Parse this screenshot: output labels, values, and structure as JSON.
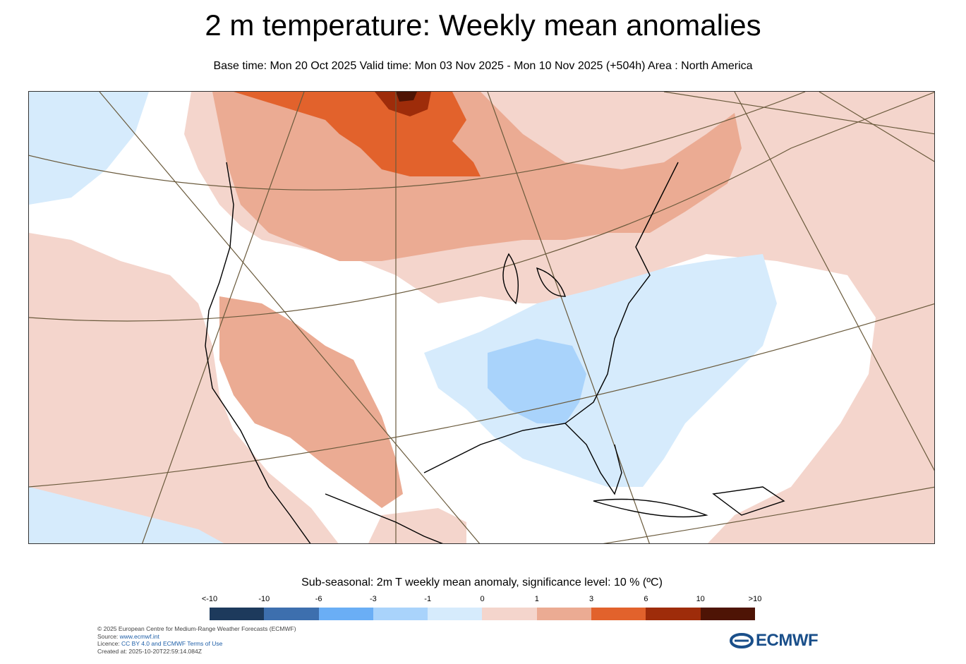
{
  "header": {
    "title": "2 m temperature: Weekly mean anomalies",
    "subtitle": "Base time: Mon 20 Oct 2025 Valid time: Mon 03 Nov 2025 - Mon 10 Nov 2025 (+504h) Area : North America"
  },
  "legend": {
    "title": "Sub-seasonal: 2m T weekly mean anomaly, significance level: 10 % (ºC)",
    "ticks": [
      "<-10",
      "-10",
      "-6",
      "-3",
      "-1",
      "0",
      "1",
      "3",
      "6",
      "10",
      ">10"
    ],
    "colors": [
      "#1d3a5c",
      "#3d6fae",
      "#6aaef5",
      "#a9d3fb",
      "#d6ebfc",
      "#f4d5cc",
      "#ebab93",
      "#e2622c",
      "#9e2c0a",
      "#4e1405"
    ]
  },
  "credits": {
    "line1": "© 2025 European Centre for Medium-Range Weather Forecasts (ECMWF)",
    "source_label": "Source: ",
    "source_link": "www.ecmwf.int",
    "licence_label": "Licence: ",
    "licence_link": "CC BY 4.0 and ECMWF Terms of Use",
    "created": "Created at: 2025-10-20T22:59:14.084Z"
  },
  "logo": {
    "text": "ECMWF",
    "icon": "ecmwf-logo-icon"
  }
}
